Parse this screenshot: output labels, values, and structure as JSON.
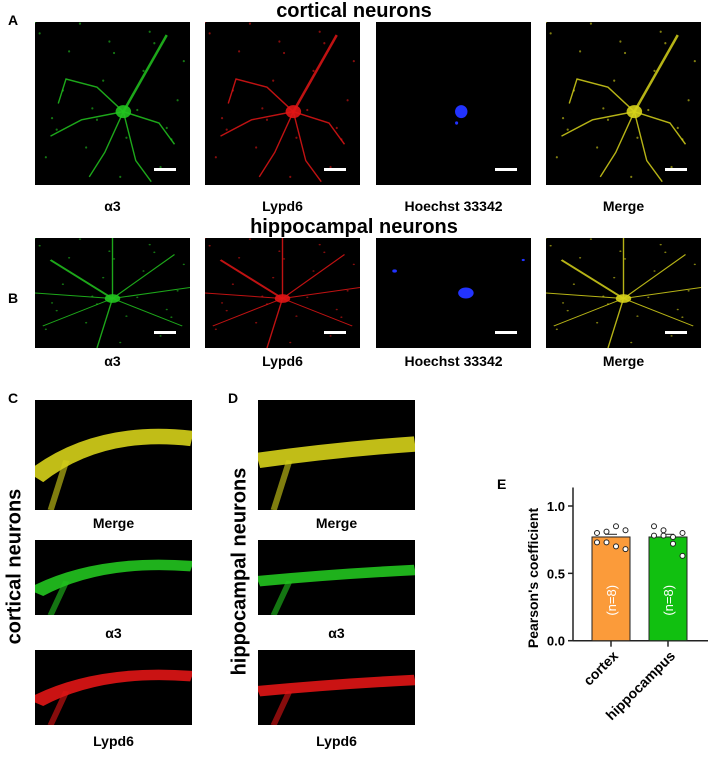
{
  "row_a": {
    "label": "A",
    "title": "cortical neurons",
    "captions": [
      "α3",
      "Lypd6",
      "Hoechst 33342",
      "Merge"
    ]
  },
  "row_b": {
    "label": "B",
    "title": "hippocampal neurons",
    "captions": [
      "α3",
      "Lypd6",
      "Hoechst 33342",
      "Merge"
    ]
  },
  "panel_c": {
    "label": "C",
    "side_title": "cortical neurons",
    "captions": [
      "Merge",
      "α3",
      "Lypd6"
    ]
  },
  "panel_d": {
    "label": "D",
    "side_title": "hippocampal neurons",
    "captions": [
      "Merge",
      "α3",
      "Lypd6"
    ]
  },
  "colors": {
    "green": "#22c41f",
    "red": "#e01515",
    "blue": "#2233ff",
    "merge": "#d6d21a",
    "cortex_bar": "#fb9b3a",
    "hippocampus_bar": "#11c010"
  },
  "chart_data": {
    "label": "E",
    "type": "bar",
    "ylabel": "Pearson's coefficient",
    "ylim": [
      0,
      1.1
    ],
    "yticks": [
      "0.0",
      "0.5",
      "1.0"
    ],
    "categories": [
      "cortex",
      "hippocampus"
    ],
    "values": [
      0.77,
      0.77
    ],
    "bar_labels": [
      "(n=8)",
      "(n=8)"
    ],
    "points": [
      [
        0.8,
        0.81,
        0.85,
        0.82,
        0.73,
        0.73,
        0.7,
        0.68
      ],
      [
        0.78,
        0.78,
        0.77,
        0.8,
        0.85,
        0.82,
        0.72,
        0.63
      ]
    ],
    "grid": false
  }
}
